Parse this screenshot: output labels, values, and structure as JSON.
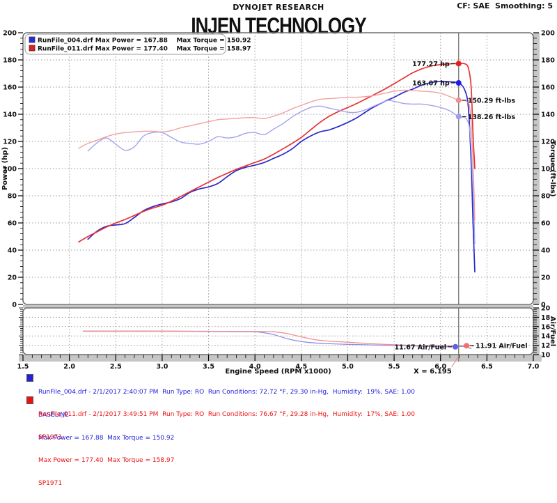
{
  "header": {
    "center": "DYNOJET RESEARCH",
    "right": "CF: SAE  Smoothing: 5"
  },
  "title": "INJEN TECHNOLOGY",
  "colors": {
    "power_baseline": "#2929cc",
    "power_sp1971": "#e63232",
    "torque_baseline": "#a3a3ef",
    "torque_sp1971": "#f3a0a0",
    "af_baseline": "#8f8fe8",
    "af_sp1971": "#f08f8f",
    "cursor": "#808080",
    "grid": "#9a9a9a",
    "frame": "#6e6e6e",
    "axis_bar": "#c6c6c6",
    "info_blue": "#2222dd",
    "info_red": "#ee1111"
  },
  "chart_data": {
    "type": "line",
    "title": "INJEN TECHNOLOGY",
    "xlabel": "Engine Speed (RPM x1000)",
    "ylabel_left": "Power (hp)",
    "ylabel_right": "Torque (ft-lbs)",
    "ylabel_af": "Air/Fuel",
    "x_range": [
      1.5,
      7.0
    ],
    "x_major": 0.5,
    "x_minor": 0.1,
    "y_range": [
      0,
      200
    ],
    "y_major": 20,
    "y_minor": 4,
    "af_range": [
      10,
      20
    ],
    "af_major": 2,
    "af_minor": 0.4,
    "grid": true,
    "cursor_x": 6.195,
    "cursor_label": "X = 6.195",
    "legend_position": "top-left",
    "legend": [
      {
        "swatch": "#2a2ae0",
        "text": "RunFile_004.drf Max Power = 167.88    Max Torque = 150.92"
      },
      {
        "swatch": "#e81e1e",
        "text": "RunFile_011.drf Max Power = 177.40    Max Torque = 158.97"
      }
    ],
    "series": [
      {
        "name": "power-baseline",
        "axis": "hp",
        "width": 1.7,
        "colorKey": "power_baseline",
        "points": [
          [
            2.2,
            48
          ],
          [
            2.3,
            54
          ],
          [
            2.4,
            57.5
          ],
          [
            2.5,
            58.5
          ],
          [
            2.6,
            59.5
          ],
          [
            2.7,
            64
          ],
          [
            2.8,
            69
          ],
          [
            2.9,
            72
          ],
          [
            3.0,
            74
          ],
          [
            3.1,
            75.5
          ],
          [
            3.2,
            78
          ],
          [
            3.3,
            82.5
          ],
          [
            3.4,
            85
          ],
          [
            3.5,
            86.5
          ],
          [
            3.6,
            89
          ],
          [
            3.7,
            94
          ],
          [
            3.8,
            98.5
          ],
          [
            3.9,
            101
          ],
          [
            4.0,
            102.5
          ],
          [
            4.1,
            104.5
          ],
          [
            4.2,
            107.5
          ],
          [
            4.3,
            110.5
          ],
          [
            4.4,
            114.5
          ],
          [
            4.5,
            120
          ],
          [
            4.6,
            124
          ],
          [
            4.7,
            127
          ],
          [
            4.8,
            128.5
          ],
          [
            4.9,
            131
          ],
          [
            5.0,
            134
          ],
          [
            5.1,
            137.5
          ],
          [
            5.2,
            142
          ],
          [
            5.3,
            146
          ],
          [
            5.4,
            149.5
          ],
          [
            5.5,
            152.5
          ],
          [
            5.6,
            156
          ],
          [
            5.7,
            158.5
          ],
          [
            5.8,
            161.5
          ],
          [
            5.9,
            163.3
          ],
          [
            6.0,
            164.2
          ],
          [
            6.1,
            163.9
          ],
          [
            6.195,
            163.07
          ],
          [
            6.26,
            158
          ],
          [
            6.3,
            145
          ],
          [
            6.33,
            105
          ],
          [
            6.35,
            60
          ],
          [
            6.37,
            24
          ]
        ]
      },
      {
        "name": "power-sp1971",
        "axis": "hp",
        "width": 1.7,
        "colorKey": "power_sp1971",
        "points": [
          [
            2.1,
            46
          ],
          [
            2.2,
            50
          ],
          [
            2.3,
            53.5
          ],
          [
            2.4,
            57
          ],
          [
            2.5,
            60
          ],
          [
            2.6,
            62.5
          ],
          [
            2.7,
            65.5
          ],
          [
            2.8,
            68.5
          ],
          [
            2.9,
            71
          ],
          [
            3.0,
            73
          ],
          [
            3.1,
            76
          ],
          [
            3.2,
            79.5
          ],
          [
            3.3,
            83
          ],
          [
            3.4,
            86.5
          ],
          [
            3.5,
            90
          ],
          [
            3.6,
            93.5
          ],
          [
            3.7,
            96.5
          ],
          [
            3.8,
            99.5
          ],
          [
            3.9,
            102
          ],
          [
            4.0,
            104.5
          ],
          [
            4.1,
            107
          ],
          [
            4.2,
            110.5
          ],
          [
            4.3,
            114.5
          ],
          [
            4.4,
            118.5
          ],
          [
            4.5,
            123
          ],
          [
            4.6,
            128.5
          ],
          [
            4.7,
            134
          ],
          [
            4.8,
            138.5
          ],
          [
            4.9,
            142
          ],
          [
            5.0,
            145
          ],
          [
            5.1,
            148
          ],
          [
            5.2,
            151.5
          ],
          [
            5.3,
            155
          ],
          [
            5.4,
            158.5
          ],
          [
            5.5,
            162.5
          ],
          [
            5.6,
            166.5
          ],
          [
            5.7,
            170.5
          ],
          [
            5.8,
            173.5
          ],
          [
            5.9,
            175.5
          ],
          [
            6.0,
            176.5
          ],
          [
            6.1,
            177.1
          ],
          [
            6.195,
            177.27
          ],
          [
            6.26,
            177.2
          ],
          [
            6.3,
            174
          ],
          [
            6.33,
            160
          ],
          [
            6.35,
            125
          ],
          [
            6.37,
            100
          ]
        ]
      },
      {
        "name": "torque-baseline",
        "axis": "hp",
        "width": 1.4,
        "colorKey": "torque_baseline",
        "points": [
          [
            2.2,
            113
          ],
          [
            2.3,
            119
          ],
          [
            2.4,
            122.5
          ],
          [
            2.5,
            118
          ],
          [
            2.6,
            113.5
          ],
          [
            2.7,
            116
          ],
          [
            2.8,
            124
          ],
          [
            2.9,
            126.5
          ],
          [
            3.0,
            126.5
          ],
          [
            3.1,
            123
          ],
          [
            3.2,
            119.5
          ],
          [
            3.3,
            118.5
          ],
          [
            3.4,
            118
          ],
          [
            3.5,
            120
          ],
          [
            3.6,
            123.5
          ],
          [
            3.7,
            122.5
          ],
          [
            3.8,
            123.5
          ],
          [
            3.9,
            126
          ],
          [
            4.0,
            126.5
          ],
          [
            4.1,
            125
          ],
          [
            4.2,
            129
          ],
          [
            4.3,
            133
          ],
          [
            4.4,
            138
          ],
          [
            4.5,
            142
          ],
          [
            4.6,
            145
          ],
          [
            4.7,
            146
          ],
          [
            4.8,
            144.5
          ],
          [
            4.9,
            143
          ],
          [
            5.0,
            141.5
          ],
          [
            5.1,
            141.5
          ],
          [
            5.2,
            143.5
          ],
          [
            5.3,
            146.5
          ],
          [
            5.4,
            149.5
          ],
          [
            5.45,
            150.3
          ],
          [
            5.5,
            149.5
          ],
          [
            5.6,
            148
          ],
          [
            5.7,
            147.5
          ],
          [
            5.8,
            147.5
          ],
          [
            5.9,
            146.5
          ],
          [
            6.0,
            145
          ],
          [
            6.1,
            142.5
          ],
          [
            6.195,
            138.26
          ],
          [
            6.28,
            136.5
          ],
          [
            6.32,
            125
          ],
          [
            6.35,
            85
          ],
          [
            6.37,
            45
          ]
        ]
      },
      {
        "name": "torque-sp1971",
        "axis": "hp",
        "width": 1.4,
        "colorKey": "torque_sp1971",
        "points": [
          [
            2.1,
            115
          ],
          [
            2.2,
            118.5
          ],
          [
            2.3,
            121
          ],
          [
            2.4,
            123.5
          ],
          [
            2.5,
            125.5
          ],
          [
            2.6,
            126.5
          ],
          [
            2.7,
            127
          ],
          [
            2.8,
            127.5
          ],
          [
            2.9,
            127.5
          ],
          [
            3.0,
            127
          ],
          [
            3.1,
            128
          ],
          [
            3.2,
            130
          ],
          [
            3.3,
            131.5
          ],
          [
            3.4,
            133
          ],
          [
            3.5,
            134.5
          ],
          [
            3.6,
            136
          ],
          [
            3.7,
            136.5
          ],
          [
            3.8,
            137
          ],
          [
            3.9,
            137.5
          ],
          [
            4.0,
            137.5
          ],
          [
            4.1,
            136.8
          ],
          [
            4.2,
            138.5
          ],
          [
            4.3,
            141
          ],
          [
            4.4,
            144
          ],
          [
            4.5,
            146.5
          ],
          [
            4.6,
            149
          ],
          [
            4.7,
            151
          ],
          [
            4.8,
            151.5
          ],
          [
            4.9,
            152
          ],
          [
            5.0,
            152.5
          ],
          [
            5.1,
            152.5
          ],
          [
            5.2,
            153
          ],
          [
            5.3,
            154
          ],
          [
            5.4,
            155.5
          ],
          [
            5.5,
            157
          ],
          [
            5.6,
            157.7
          ],
          [
            5.7,
            157.5
          ],
          [
            5.8,
            157
          ],
          [
            5.9,
            156.5
          ],
          [
            6.0,
            155.5
          ],
          [
            6.1,
            153
          ],
          [
            6.195,
            150.29
          ],
          [
            6.28,
            149.5
          ],
          [
            6.32,
            142
          ],
          [
            6.35,
            105
          ],
          [
            6.37,
            62
          ]
        ]
      },
      {
        "name": "airfuel-baseline",
        "axis": "af",
        "width": 1.3,
        "colorKey": "af_baseline",
        "points": [
          [
            2.15,
            15.0
          ],
          [
            2.6,
            15.0
          ],
          [
            3.0,
            15.0
          ],
          [
            3.5,
            14.95
          ],
          [
            3.9,
            14.9
          ],
          [
            4.05,
            14.8
          ],
          [
            4.2,
            14.3
          ],
          [
            4.35,
            13.4
          ],
          [
            4.5,
            12.8
          ],
          [
            4.65,
            12.5
          ],
          [
            4.8,
            12.35
          ],
          [
            5.0,
            12.2
          ],
          [
            5.2,
            12.1
          ],
          [
            5.4,
            12.0
          ],
          [
            5.6,
            11.9
          ],
          [
            5.8,
            11.8
          ],
          [
            6.0,
            11.72
          ],
          [
            6.16,
            11.67
          ],
          [
            6.25,
            11.75
          ],
          [
            6.33,
            11.3
          ]
        ]
      },
      {
        "name": "airfuel-sp1971",
        "axis": "af",
        "width": 1.3,
        "colorKey": "af_sp1971",
        "points": [
          [
            2.15,
            15.05
          ],
          [
            2.6,
            15.05
          ],
          [
            3.0,
            15.05
          ],
          [
            3.5,
            15.0
          ],
          [
            4.0,
            14.95
          ],
          [
            4.2,
            14.9
          ],
          [
            4.35,
            14.5
          ],
          [
            4.5,
            13.8
          ],
          [
            4.65,
            13.2
          ],
          [
            4.8,
            12.9
          ],
          [
            5.0,
            12.65
          ],
          [
            5.2,
            12.4
          ],
          [
            5.4,
            12.2
          ],
          [
            5.6,
            12.05
          ],
          [
            5.8,
            11.95
          ],
          [
            6.0,
            11.9
          ],
          [
            6.15,
            11.87
          ],
          [
            6.28,
            11.91
          ],
          [
            6.35,
            11.85
          ]
        ]
      }
    ],
    "annotations": [
      {
        "text": "177.27 hp",
        "x": 6.195,
        "y": 177.27,
        "axis": "hp",
        "side": "left",
        "dot": "#e61e1e"
      },
      {
        "text": "163.07 hp",
        "x": 6.195,
        "y": 163.07,
        "axis": "hp",
        "side": "left",
        "dot": "#1e1ee6"
      },
      {
        "text": "150.29 ft-lbs",
        "x": 6.195,
        "y": 150.29,
        "axis": "hp",
        "side": "right",
        "dot": "#ef8f8f"
      },
      {
        "text": "138.26 ft-lbs",
        "x": 6.195,
        "y": 138.26,
        "axis": "hp",
        "side": "right",
        "dot": "#9f9fef"
      },
      {
        "text": "11.67 Air/Fuel",
        "x": 6.16,
        "y": 11.67,
        "axis": "af",
        "side": "left",
        "dot": "#5f5fe8"
      },
      {
        "text": "11.91 Air/Fuel",
        "x": 6.28,
        "y": 11.91,
        "axis": "af",
        "side": "right",
        "dot": "#f07070"
      }
    ]
  },
  "runs": [
    {
      "color": "#2222dd",
      "file_line": "RunFile_004.drf - 2/1/2017 2:40:07 PM  Run Type: RO  Run Conditions: 72.72 °F, 29.30 in-Hg,  Humidity:  19%, SAE: 1.00",
      "tag": "BASELINE",
      "max_line": "Max Power = 167.88  Max Torque = 150.92"
    },
    {
      "color": "#ee1111",
      "file_line": "RunFile_011.drf - 2/1/2017 3:49:51 PM  Run Type: RO  Run Conditions: 76.67 °F, 29.28 in-Hg,  Humidity:  17%, SAE: 1.00",
      "tag": "SP1971",
      "max_line": "Max Power = 177.40  Max Torque = 158.97",
      "tag2": "SP1971"
    }
  ]
}
